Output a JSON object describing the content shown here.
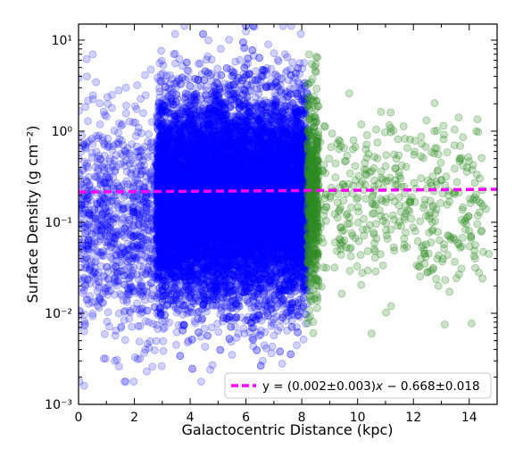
{
  "chart_data": {
    "type": "scatter",
    "title": "",
    "xlabel": "Galactocentric Distance (kpc)",
    "ylabel": "Surface Density  (g cm⁻²)",
    "xlim": [
      0,
      15
    ],
    "ylim": [
      0.001,
      15
    ],
    "yscale": "log",
    "grid": false,
    "legend_position": "lower-right",
    "x_ticks": [
      0,
      2,
      4,
      6,
      8,
      10,
      12,
      14
    ],
    "x_tick_labels": [
      "0",
      "2",
      "4",
      "6",
      "8",
      "10",
      "12",
      "14"
    ],
    "y_ticks": [
      0.001,
      0.01,
      0.1,
      1,
      10
    ],
    "y_tick_labels": [
      "10⁻³",
      "10⁻²",
      "10⁻¹",
      "10⁰",
      "10¹"
    ],
    "series": [
      {
        "kind": "points",
        "color": "#0000ff",
        "alpha": 0.18,
        "density_profile": [
          {
            "x": [
              0.0,
              2.8
            ],
            "count": 900,
            "log10_mean": -1.05,
            "log10_sd": 0.6
          },
          {
            "x": [
              2.8,
              8.2
            ],
            "count": 14000,
            "log10_mean": -0.75,
            "log10_sd": 0.55
          }
        ],
        "sample_points": [
          [
            0.3,
            4.0
          ],
          [
            1.2,
            2.5
          ],
          [
            2.1,
            3.2
          ],
          [
            3.0,
            2.0
          ],
          [
            4.3,
            5.5
          ],
          [
            5.1,
            8.0
          ],
          [
            6.0,
            12.5
          ],
          [
            6.3,
            14.0
          ],
          [
            6.8,
            9.0
          ],
          [
            7.4,
            7.0
          ],
          [
            3.5,
            0.0045
          ],
          [
            4.8,
            0.0027
          ],
          [
            5.5,
            0.0035
          ],
          [
            6.6,
            0.003
          ],
          [
            7.3,
            0.0028
          ],
          [
            0.2,
            0.0016
          ],
          [
            1.3,
            0.003
          ],
          [
            2.4,
            0.004
          ]
        ]
      },
      {
        "kind": "points",
        "color": "#2e8b22",
        "alpha": 0.25,
        "density_profile": [
          {
            "x": [
              8.2,
              8.6
            ],
            "count": 500,
            "log10_mean": -0.7,
            "log10_sd": 0.55
          },
          {
            "x": [
              8.6,
              14.5
            ],
            "count": 420,
            "log10_mean": -0.8,
            "log10_sd": 0.45
          }
        ],
        "sample_points": [
          [
            9.7,
            2.6
          ],
          [
            10.5,
            0.006
          ],
          [
            12.9,
            0.02
          ],
          [
            14.7,
            0.045
          ],
          [
            14.6,
            0.14
          ],
          [
            11.2,
            0.012
          ]
        ]
      },
      {
        "kind": "fit-line",
        "name": "y = (0.002±0.003)x − 0.668±0.018",
        "color": "#ff00ff",
        "dash": true,
        "log10_y_slope": 0.002,
        "log10_y_intercept": -0.668,
        "x_range": [
          0,
          15
        ]
      }
    ],
    "legend": {
      "label_prefix": "y = (0.002±0.003)",
      "label_var": "x",
      "label_suffix": " − 0.668±0.018"
    }
  }
}
